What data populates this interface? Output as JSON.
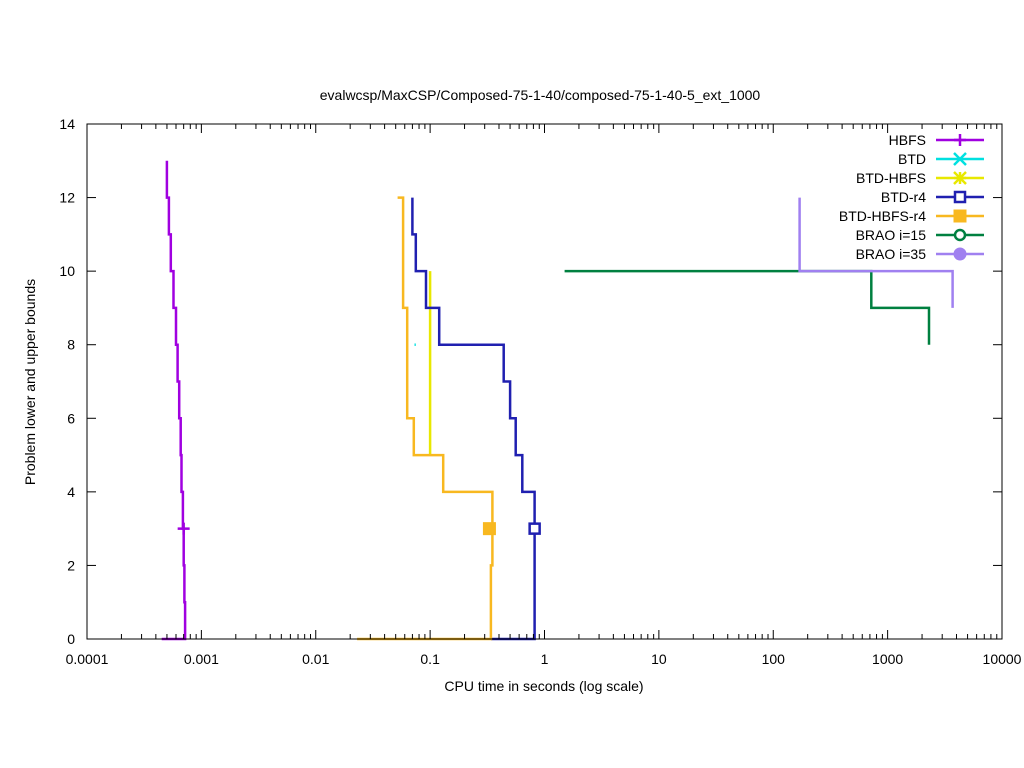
{
  "chart_data": {
    "type": "line",
    "title": "evalwcsp/MaxCSP/Composed-75-1-40/composed-75-1-40-5_ext_1000",
    "xlabel": "CPU time in seconds (log scale)",
    "ylabel": "Problem lower and upper bounds",
    "xscale": "log",
    "xlim": [
      0.0001,
      10000
    ],
    "ylim": [
      0,
      14
    ],
    "xticks": [
      0.0001,
      0.001,
      0.01,
      0.1,
      1,
      10,
      100,
      1000,
      10000
    ],
    "xtick_labels": [
      "0.0001",
      "0.001",
      "0.01",
      "0.1",
      "1",
      "10",
      "100",
      "1000",
      "10000"
    ],
    "yticks": [
      0,
      2,
      4,
      6,
      8,
      10,
      12,
      14
    ],
    "ytick_labels": [
      "0",
      "2",
      "4",
      "6",
      "8",
      "10",
      "12",
      "14"
    ],
    "grid": false,
    "legend_position": "top-right",
    "series": [
      {
        "name": "HBFS",
        "color": "#a000e0",
        "marker": "plus",
        "marker_points": [
          [
            0.0007,
            3
          ]
        ],
        "lines": [
          [
            [
              0.00045,
              0
            ],
            [
              0.00072,
              0
            ],
            [
              0.00072,
              1
            ],
            [
              0.00071,
              1
            ],
            [
              0.00071,
              2
            ],
            [
              0.0007,
              2
            ],
            [
              0.0007,
              3
            ],
            [
              0.00069,
              3
            ],
            [
              0.00069,
              4
            ],
            [
              0.00067,
              4
            ],
            [
              0.00067,
              5
            ],
            [
              0.00066,
              5
            ],
            [
              0.00066,
              6
            ],
            [
              0.00064,
              6
            ],
            [
              0.00064,
              7
            ],
            [
              0.00062,
              7
            ],
            [
              0.00062,
              8
            ],
            [
              0.0006,
              8
            ],
            [
              0.0006,
              9
            ],
            [
              0.00057,
              9
            ],
            [
              0.00057,
              10
            ],
            [
              0.00054,
              10
            ],
            [
              0.00054,
              11
            ],
            [
              0.00052,
              11
            ],
            [
              0.00052,
              12
            ],
            [
              0.0005,
              12
            ],
            [
              0.0005,
              13
            ]
          ]
        ]
      },
      {
        "name": "BTD",
        "color": "#00e0e0",
        "marker": "cross",
        "marker_points": [],
        "lines": [
          [
            [
              0.073,
              8
            ],
            [
              0.075,
              8
            ]
          ]
        ]
      },
      {
        "name": "BTD-HBFS",
        "color": "#e8e800",
        "marker": "star",
        "marker_points": [],
        "lines": [
          [
            [
              0.1,
              5
            ],
            [
              0.1,
              10
            ]
          ]
        ]
      },
      {
        "name": "BTD-r4",
        "color": "#2020b0",
        "marker": "open-square",
        "marker_points": [
          [
            0.82,
            3
          ]
        ],
        "lines": [
          [
            [
              0.34,
              0
            ],
            [
              0.82,
              0
            ],
            [
              0.82,
              4
            ],
            [
              0.64,
              4
            ],
            [
              0.64,
              5
            ],
            [
              0.56,
              5
            ],
            [
              0.56,
              6
            ],
            [
              0.5,
              6
            ],
            [
              0.5,
              7
            ],
            [
              0.44,
              7
            ],
            [
              0.44,
              8
            ],
            [
              0.12,
              8
            ],
            [
              0.12,
              9
            ],
            [
              0.092,
              9
            ],
            [
              0.092,
              10
            ],
            [
              0.075,
              10
            ],
            [
              0.075,
              11
            ],
            [
              0.07,
              11
            ],
            [
              0.07,
              12
            ]
          ]
        ]
      },
      {
        "name": "BTD-HBFS-r4",
        "color": "#f8b820",
        "marker": "filled-square",
        "marker_points": [
          [
            0.33,
            3
          ]
        ],
        "lines": [
          [
            [
              0.023,
              0
            ],
            [
              0.34,
              0
            ],
            [
              0.34,
              2
            ],
            [
              0.35,
              2
            ],
            [
              0.35,
              4
            ],
            [
              0.3,
              4
            ],
            [
              0.3,
              4
            ],
            [
              0.13,
              4
            ],
            [
              0.13,
              5
            ],
            [
              0.072,
              5
            ],
            [
              0.072,
              6
            ],
            [
              0.063,
              6
            ],
            [
              0.063,
              9
            ],
            [
              0.058,
              9
            ],
            [
              0.058,
              12
            ],
            [
              0.052,
              12
            ]
          ]
        ]
      },
      {
        "name": "BRAO i=15",
        "color": "#008040",
        "marker": "open-circle",
        "marker_points": [],
        "lines": [
          [
            [
              1.5,
              10
            ],
            [
              720,
              10
            ],
            [
              720,
              9
            ],
            [
              2300,
              9
            ],
            [
              2300,
              8
            ]
          ]
        ]
      },
      {
        "name": "BRAO i=35",
        "color": "#a080f0",
        "marker": "filled-circle",
        "marker_points": [],
        "lines": [
          [
            [
              170,
              12
            ],
            [
              170,
              10
            ],
            [
              3700,
              10
            ],
            [
              3700,
              9
            ]
          ]
        ]
      }
    ]
  }
}
